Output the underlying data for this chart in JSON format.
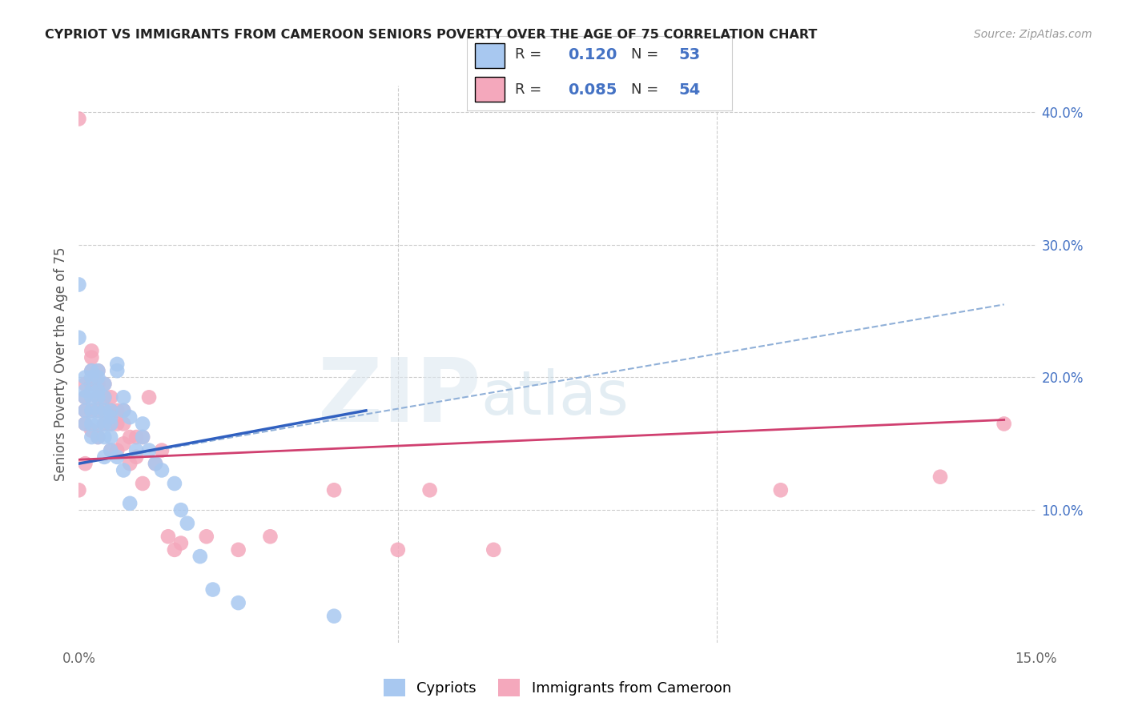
{
  "title": "CYPRIOT VS IMMIGRANTS FROM CAMEROON SENIORS POVERTY OVER THE AGE OF 75 CORRELATION CHART",
  "source": "Source: ZipAtlas.com",
  "ylabel": "Seniors Poverty Over the Age of 75",
  "xlim": [
    0,
    0.15
  ],
  "ylim": [
    0,
    0.42
  ],
  "R_blue": 0.12,
  "N_blue": 53,
  "R_pink": 0.085,
  "N_pink": 54,
  "color_blue": "#a8c8f0",
  "color_pink": "#f4a8bc",
  "color_blue_line": "#3060c0",
  "color_pink_line": "#d04070",
  "color_dashed": "#90b0d8",
  "watermark_zip": "ZIP",
  "watermark_atlas": "atlas",
  "legend_label_blue": "Cypriots",
  "legend_label_pink": "Immigrants from Cameroon",
  "blue_x": [
    0.0,
    0.0,
    0.001,
    0.001,
    0.001,
    0.001,
    0.001,
    0.002,
    0.002,
    0.002,
    0.002,
    0.002,
    0.002,
    0.002,
    0.003,
    0.003,
    0.003,
    0.003,
    0.003,
    0.003,
    0.003,
    0.004,
    0.004,
    0.004,
    0.004,
    0.004,
    0.004,
    0.005,
    0.005,
    0.005,
    0.005,
    0.005,
    0.006,
    0.006,
    0.006,
    0.007,
    0.007,
    0.007,
    0.008,
    0.008,
    0.009,
    0.01,
    0.01,
    0.011,
    0.012,
    0.013,
    0.015,
    0.016,
    0.017,
    0.019,
    0.021,
    0.025,
    0.04
  ],
  "blue_y": [
    0.27,
    0.23,
    0.2,
    0.19,
    0.185,
    0.175,
    0.165,
    0.205,
    0.2,
    0.19,
    0.185,
    0.175,
    0.165,
    0.155,
    0.205,
    0.2,
    0.19,
    0.185,
    0.175,
    0.165,
    0.155,
    0.195,
    0.185,
    0.175,
    0.165,
    0.155,
    0.14,
    0.175,
    0.17,
    0.165,
    0.155,
    0.145,
    0.21,
    0.205,
    0.14,
    0.185,
    0.175,
    0.13,
    0.17,
    0.105,
    0.145,
    0.165,
    0.155,
    0.145,
    0.135,
    0.13,
    0.12,
    0.1,
    0.09,
    0.065,
    0.04,
    0.03,
    0.02
  ],
  "pink_x": [
    0.0,
    0.0,
    0.001,
    0.001,
    0.001,
    0.001,
    0.001,
    0.002,
    0.002,
    0.002,
    0.002,
    0.002,
    0.002,
    0.003,
    0.003,
    0.003,
    0.003,
    0.003,
    0.004,
    0.004,
    0.004,
    0.004,
    0.005,
    0.005,
    0.005,
    0.005,
    0.006,
    0.006,
    0.006,
    0.007,
    0.007,
    0.007,
    0.008,
    0.008,
    0.009,
    0.009,
    0.01,
    0.01,
    0.011,
    0.012,
    0.013,
    0.014,
    0.015,
    0.016,
    0.02,
    0.025,
    0.03,
    0.04,
    0.05,
    0.055,
    0.065,
    0.11,
    0.135,
    0.145
  ],
  "pink_y": [
    0.395,
    0.115,
    0.195,
    0.185,
    0.175,
    0.165,
    0.135,
    0.22,
    0.215,
    0.205,
    0.195,
    0.175,
    0.16,
    0.205,
    0.195,
    0.185,
    0.175,
    0.155,
    0.195,
    0.185,
    0.175,
    0.165,
    0.185,
    0.175,
    0.165,
    0.145,
    0.175,
    0.165,
    0.145,
    0.175,
    0.165,
    0.15,
    0.155,
    0.135,
    0.155,
    0.14,
    0.155,
    0.12,
    0.185,
    0.135,
    0.145,
    0.08,
    0.07,
    0.075,
    0.08,
    0.07,
    0.08,
    0.115,
    0.07,
    0.115,
    0.07,
    0.115,
    0.125,
    0.165
  ],
  "blue_line_x": [
    0.0,
    0.045
  ],
  "blue_line_y": [
    0.135,
    0.175
  ],
  "pink_line_x": [
    0.0,
    0.145
  ],
  "pink_line_y": [
    0.138,
    0.168
  ],
  "dashed_line_x": [
    0.0,
    0.145
  ],
  "dashed_line_y": [
    0.135,
    0.255
  ]
}
